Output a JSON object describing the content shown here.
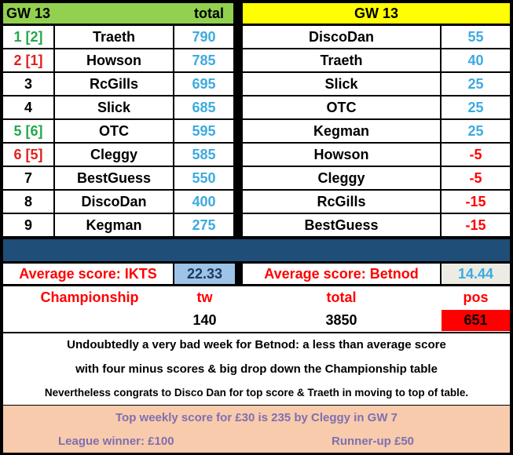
{
  "left_table": {
    "header_title": "GW 13",
    "header_total": "total",
    "rows": [
      {
        "rank": "1 [2]",
        "rank_color": "#23a84a",
        "name": "Traeth",
        "total": "790"
      },
      {
        "rank": "2 [1]",
        "rank_color": "#e02020",
        "name": "Howson",
        "total": "785"
      },
      {
        "rank": "3",
        "rank_color": "#000000",
        "name": "RcGills",
        "total": "695"
      },
      {
        "rank": "4",
        "rank_color": "#000000",
        "name": "Slick",
        "total": "685"
      },
      {
        "rank": "5 [6]",
        "rank_color": "#23a84a",
        "name": "OTC",
        "total": "595"
      },
      {
        "rank": "6 [5]",
        "rank_color": "#e02020",
        "name": "Cleggy",
        "total": "585"
      },
      {
        "rank": "7",
        "rank_color": "#000000",
        "name": "BestGuess",
        "total": "550"
      },
      {
        "rank": "8",
        "rank_color": "#000000",
        "name": "DiscoDan",
        "total": "400"
      },
      {
        "rank": "9",
        "rank_color": "#000000",
        "name": "Kegman",
        "total": "275"
      }
    ]
  },
  "right_table": {
    "header_title": "GW 13",
    "rows": [
      {
        "name": "DiscoDan",
        "score": "55",
        "negative": false
      },
      {
        "name": "Traeth",
        "score": "40",
        "negative": false
      },
      {
        "name": "Slick",
        "score": "25",
        "negative": false
      },
      {
        "name": "OTC",
        "score": "25",
        "negative": false
      },
      {
        "name": "Kegman",
        "score": "25",
        "negative": false
      },
      {
        "name": "Howson",
        "score": "-5",
        "negative": true
      },
      {
        "name": "Cleggy",
        "score": "-5",
        "negative": true
      },
      {
        "name": "RcGills",
        "score": "-15",
        "negative": true
      },
      {
        "name": "BestGuess",
        "score": "-15",
        "negative": true
      }
    ]
  },
  "averages": {
    "ikts_label": "Average score: IKTS",
    "ikts_value": "22.33",
    "betnod_label": "Average score: Betnod",
    "betnod_value": "14.44"
  },
  "championship": {
    "label": "Championship",
    "tw_label": "tw",
    "total_label": "total",
    "pos_label": "pos",
    "tw_value": "140",
    "total_value": "3850",
    "pos_value": "651"
  },
  "notes": [
    "Undoubtedly a very bad week for Betnod:  a less than average score",
    "with four minus scores & big drop down the Championship table",
    "Nevertheless congrats to Disco Dan for top score & Traeth in moving to top of table."
  ],
  "prizes": {
    "top_weekly": "Top weekly score for £30 is 235 by Cleggy in GW 7",
    "league_winner": "League winner: £100",
    "runner_up": "Runner-up £50"
  },
  "colors": {
    "left_header_bg": "#92d050",
    "right_header_bg": "#ffff00",
    "score_blue": "#3daadf",
    "negative_red": "#ff0000",
    "band_navy": "#1f4e79",
    "pos_bg": "#ff0000",
    "prize_bg": "#f8cbad",
    "prize_text": "#7f6fb0"
  }
}
